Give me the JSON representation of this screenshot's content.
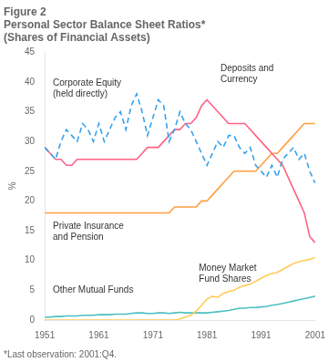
{
  "chart_data": {
    "type": "line",
    "title": [
      "Figure 2",
      "Personal Sector Balance Sheet Ratios*",
      "(Shares of Financial Assets)"
    ],
    "ylabel": "%",
    "footnote": "*Last observation: 2001:Q4.",
    "x": [
      1951,
      1952,
      1953,
      1954,
      1955,
      1956,
      1957,
      1958,
      1959,
      1960,
      1961,
      1962,
      1963,
      1964,
      1965,
      1966,
      1967,
      1968,
      1969,
      1970,
      1971,
      1972,
      1973,
      1974,
      1975,
      1976,
      1977,
      1978,
      1979,
      1980,
      1981,
      1982,
      1983,
      1984,
      1985,
      1986,
      1987,
      1988,
      1989,
      1990,
      1991,
      1992,
      1993,
      1994,
      1995,
      1996,
      1997,
      1998,
      1999,
      2000,
      2001
    ],
    "series": [
      {
        "line_style": "dashed",
        "values": [
          29,
          28,
          27,
          30,
          32,
          31,
          30,
          33,
          32,
          30,
          33,
          30,
          32,
          34,
          35,
          32,
          36,
          38,
          35,
          31,
          34,
          37,
          36,
          30,
          32,
          35,
          33,
          32,
          30,
          28,
          26,
          28,
          30,
          29,
          31,
          31,
          29,
          28,
          29,
          26,
          25,
          24,
          26,
          24,
          27,
          28,
          29,
          27,
          28,
          25,
          23
        ]
      },
      {
        "line_style": "solid",
        "values": [
          29,
          28,
          27,
          27,
          26,
          26,
          27,
          27,
          27,
          27,
          27,
          27,
          27,
          27,
          27,
          27,
          27,
          27,
          28,
          29,
          29,
          29,
          30,
          31,
          32,
          32,
          33,
          33,
          34,
          36,
          37,
          36,
          35,
          34,
          33,
          33,
          33,
          33,
          32,
          31,
          30,
          29,
          28,
          27,
          26,
          24,
          22,
          20,
          18,
          14,
          13
        ]
      },
      {
        "line_style": "solid",
        "values": [
          18,
          18,
          18,
          18,
          18,
          18,
          18,
          18,
          18,
          18,
          18,
          18,
          18,
          18,
          18,
          18,
          18,
          18,
          18,
          18,
          18,
          18,
          18,
          18,
          19,
          19,
          19,
          19,
          19,
          20,
          20,
          21,
          22,
          23,
          24,
          25,
          25,
          25,
          25,
          25,
          26,
          27,
          28,
          28,
          29,
          30,
          31,
          32,
          33,
          33,
          33
        ]
      },
      {
        "line_style": "solid",
        "values": [
          0,
          0,
          0,
          0,
          0,
          0,
          0,
          0,
          0,
          0,
          0,
          0,
          0,
          0,
          0,
          0,
          0,
          0,
          0,
          0,
          0,
          0,
          0,
          0,
          0,
          0.2,
          0.5,
          0.8,
          1.5,
          2.5,
          3.5,
          4.0,
          3.8,
          4.5,
          4.8,
          5.0,
          5.5,
          5.8,
          6.0,
          6.5,
          7.0,
          7.5,
          7.8,
          8.0,
          8.5,
          9.0,
          9.5,
          9.8,
          10.0,
          10.2,
          10.5
        ]
      },
      {
        "line_style": "solid",
        "values": [
          0.5,
          0.5,
          0.6,
          0.6,
          0.7,
          0.7,
          0.7,
          0.8,
          0.8,
          0.8,
          0.9,
          0.9,
          0.9,
          1.0,
          1.0,
          1.0,
          1.1,
          1.2,
          1.2,
          1.1,
          1.1,
          1.2,
          1.2,
          1.1,
          1.2,
          1.3,
          1.2,
          1.2,
          1.2,
          1.2,
          1.2,
          1.3,
          1.4,
          1.5,
          1.6,
          1.8,
          2.0,
          2.0,
          2.1,
          2.1,
          2.2,
          2.3,
          2.5,
          2.6,
          2.8,
          3.0,
          3.2,
          3.4,
          3.6,
          3.8,
          4.0
        ]
      }
    ],
    "xlim": [
      1951,
      2001
    ],
    "xticks": [
      1951,
      1961,
      1971,
      1981,
      1991,
      2001
    ],
    "ylim": [
      0,
      45
    ],
    "yticks": [
      0,
      5,
      10,
      15,
      20,
      25,
      30,
      35,
      40,
      45
    ],
    "grid": false,
    "annotations": [
      {
        "text": "Corporate Equity\n(held directly)",
        "x": 1952.5,
        "y": 40.5
      },
      {
        "text": "Deposits and\nCurrency",
        "x": 1983.5,
        "y": 43
      },
      {
        "text": "Private Insurance\nand Pension",
        "x": 1952.5,
        "y": 16.5
      },
      {
        "text": "Money Market\nFund Shares",
        "x": 1979.5,
        "y": 9.5
      },
      {
        "text": "Other Mutual Funds",
        "x": 1952.5,
        "y": 5.8
      }
    ]
  }
}
